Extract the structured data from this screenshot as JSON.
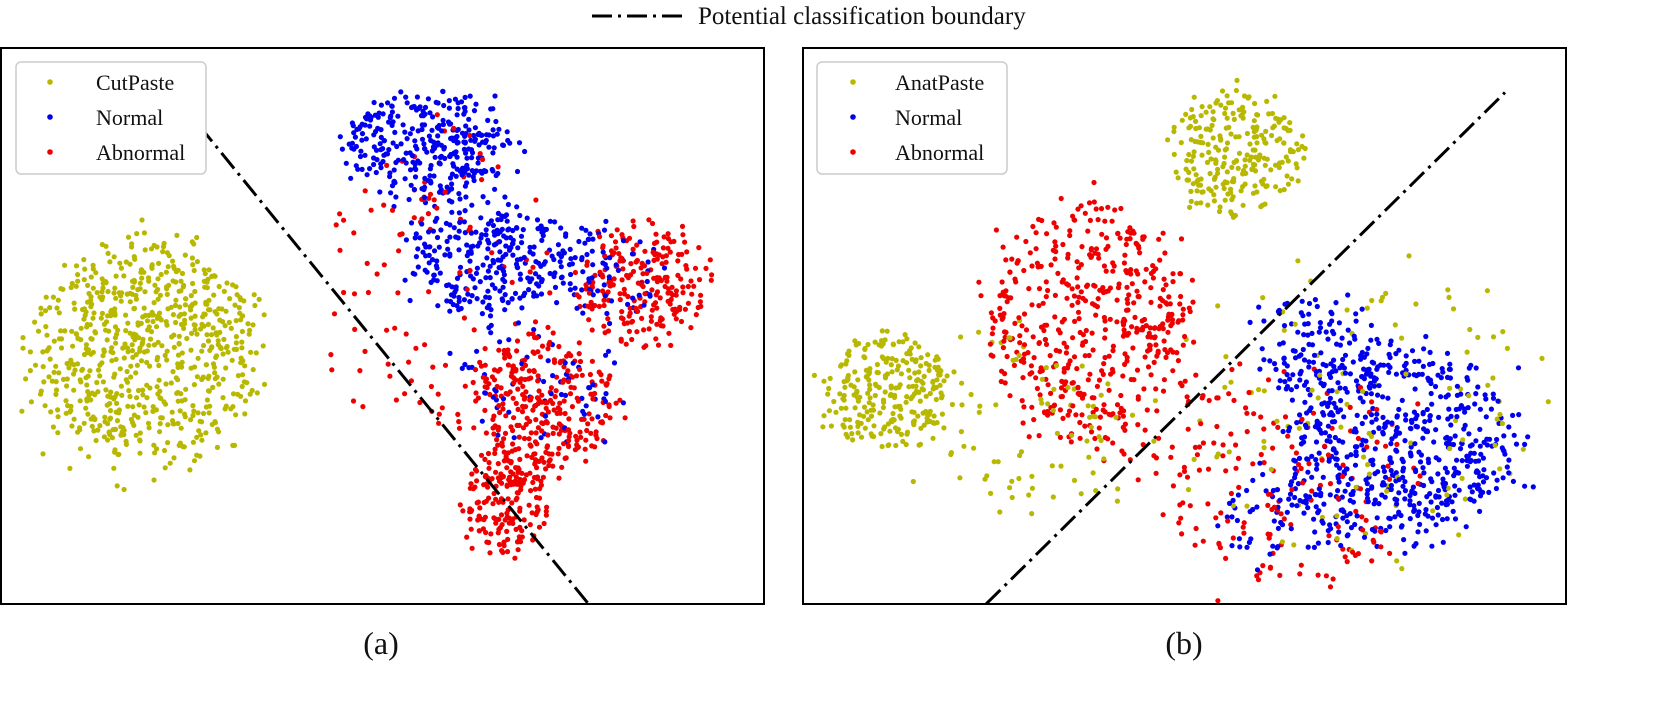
{
  "figure": {
    "top_legend_label": "Potential classification boundary",
    "boundary_style": "dash-dot"
  },
  "colors": {
    "synthetic": "#b8b800",
    "normal": "#0000ee",
    "abnormal": "#ee0000",
    "boundary": "#000000",
    "frame": "#000000",
    "legend_border": "#cccccc"
  },
  "chart_data": [
    {
      "type": "scatter",
      "panel_label": "(a)",
      "title": "",
      "xlabel": "",
      "ylabel": "",
      "grid": false,
      "axis_ticks": false,
      "xlim": [
        0,
        100
      ],
      "ylim": [
        0,
        100
      ],
      "legend_position": "top-left",
      "legend": [
        "CutPaste",
        "Normal",
        "Abnormal"
      ],
      "boundary_line": [
        [
          26,
          86
        ],
        [
          77,
          0
        ]
      ],
      "series": [
        {
          "name": "CutPaste",
          "color_key": "synthetic",
          "seed": 11,
          "clusters": [
            {
              "cx": 19,
              "cy": 45,
              "rx": 16,
              "ry": 22,
              "count": 720,
              "spread": 0.9
            }
          ]
        },
        {
          "name": "Normal",
          "color_key": "normal",
          "seed": 23,
          "clusters": [
            {
              "cx": 56,
              "cy": 82,
              "rx": 12,
              "ry": 11,
              "count": 330,
              "spread": 0.85
            },
            {
              "cx": 63,
              "cy": 63,
              "rx": 12,
              "ry": 12,
              "count": 260,
              "spread": 0.85
            },
            {
              "cx": 78,
              "cy": 60,
              "rx": 10,
              "ry": 10,
              "count": 90,
              "spread": 0.8
            },
            {
              "cx": 70,
              "cy": 40,
              "rx": 12,
              "ry": 12,
              "count": 70,
              "spread": 0.9
            }
          ]
        },
        {
          "name": "Abnormal",
          "color_key": "abnormal",
          "seed": 37,
          "clusters": [
            {
              "cx": 84,
              "cy": 57,
              "rx": 9,
              "ry": 12,
              "count": 230,
              "spread": 0.9
            },
            {
              "cx": 71,
              "cy": 36,
              "rx": 10,
              "ry": 13,
              "count": 300,
              "spread": 0.9
            },
            {
              "cx": 66,
              "cy": 18,
              "rx": 6,
              "ry": 10,
              "count": 170,
              "spread": 0.9
            },
            {
              "cx": 57,
              "cy": 58,
              "rx": 15,
              "ry": 28,
              "count": 110,
              "spread": 0.95
            }
          ]
        }
      ]
    },
    {
      "type": "scatter",
      "panel_label": "(b)",
      "title": "",
      "xlabel": "",
      "ylabel": "",
      "grid": false,
      "axis_ticks": false,
      "xlim": [
        0,
        100
      ],
      "ylim": [
        0,
        100
      ],
      "legend_position": "top-left",
      "legend": [
        "AnatPaste",
        "Normal",
        "Abnormal"
      ],
      "boundary_line": [
        [
          24,
          0
        ],
        [
          92,
          92
        ]
      ],
      "series": [
        {
          "name": "AnatPaste",
          "color_key": "synthetic",
          "seed": 41,
          "clusters": [
            {
              "cx": 57,
              "cy": 81,
              "rx": 9,
              "ry": 12,
              "count": 250,
              "spread": 0.9
            },
            {
              "cx": 11,
              "cy": 38,
              "rx": 9,
              "ry": 11,
              "count": 260,
              "spread": 0.9
            },
            {
              "cx": 30,
              "cy": 33,
              "rx": 15,
              "ry": 18,
              "count": 80,
              "spread": 1.0
            },
            {
              "cx": 73,
              "cy": 35,
              "rx": 24,
              "ry": 27,
              "count": 110,
              "spread": 1.0
            }
          ]
        },
        {
          "name": "Normal",
          "color_key": "normal",
          "seed": 53,
          "clusters": [
            {
              "cx": 78,
              "cy": 29,
              "rx": 17,
              "ry": 20,
              "count": 580,
              "spread": 0.85
            },
            {
              "cx": 67,
              "cy": 46,
              "rx": 10,
              "ry": 10,
              "count": 120,
              "spread": 0.9
            },
            {
              "cx": 62,
              "cy": 15,
              "rx": 9,
              "ry": 8,
              "count": 60,
              "spread": 0.9
            }
          ]
        },
        {
          "name": "Abnormal",
          "color_key": "abnormal",
          "seed": 67,
          "clusters": [
            {
              "cx": 38,
              "cy": 50,
              "rx": 15,
              "ry": 24,
              "count": 500,
              "spread": 0.85
            },
            {
              "cx": 63,
              "cy": 23,
              "rx": 18,
              "ry": 21,
              "count": 180,
              "spread": 0.95
            }
          ]
        }
      ]
    }
  ]
}
